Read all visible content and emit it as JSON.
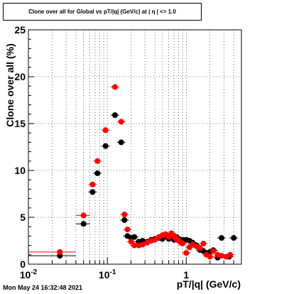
{
  "title": "Clone  over all for Global vs pT/|q| (GeV/c) at |  η | <= 1.0",
  "timestamp": "Mon May 24 16:32:48 2021",
  "colors": {
    "series_black": "#000000",
    "series_red": "#ff0000",
    "grid": "#000000"
  },
  "chart_data": {
    "type": "scatter",
    "title": "Clone  over all for Global vs pT/|q| (GeV/c) at |  η | <= 1.0",
    "xlabel": "pT/|q| (GeV/c)",
    "ylabel": "Clone  over all (%)",
    "x_scale": "log",
    "xlim": [
      0.01,
      5
    ],
    "ylim": [
      0,
      25
    ],
    "grid": true,
    "x_ticks": [
      {
        "value": 0.01,
        "label": "10",
        "sup": "-2"
      },
      {
        "value": 0.1,
        "label": "10",
        "sup": "-1"
      },
      {
        "value": 1,
        "label": "1",
        "sup": ""
      }
    ],
    "y_ticks": [
      0,
      5,
      10,
      15,
      20,
      25
    ],
    "series": [
      {
        "color": "#000000",
        "points": [
          {
            "x": 0.025,
            "y": 0.9,
            "xerr": [
              0.01,
              0.04
            ]
          },
          {
            "x": 0.05,
            "y": 4.3,
            "xerr": [
              0.04,
              0.06
            ]
          },
          {
            "x": 0.065,
            "y": 7.7
          },
          {
            "x": 0.075,
            "y": 9.7
          },
          {
            "x": 0.095,
            "y": 12.6
          },
          {
            "x": 0.125,
            "y": 15.9
          },
          {
            "x": 0.15,
            "y": 13.0
          },
          {
            "x": 0.165,
            "y": 4.7
          },
          {
            "x": 0.18,
            "y": 3.0
          },
          {
            "x": 0.2,
            "y": 2.8
          },
          {
            "x": 0.22,
            "y": 2.9
          },
          {
            "x": 0.25,
            "y": 2.4
          },
          {
            "x": 0.28,
            "y": 2.5
          },
          {
            "x": 0.32,
            "y": 2.4
          },
          {
            "x": 0.36,
            "y": 2.6
          },
          {
            "x": 0.4,
            "y": 2.7
          },
          {
            "x": 0.45,
            "y": 2.8
          },
          {
            "x": 0.5,
            "y": 2.7
          },
          {
            "x": 0.55,
            "y": 3.0
          },
          {
            "x": 0.6,
            "y": 2.7
          },
          {
            "x": 0.65,
            "y": 2.8
          },
          {
            "x": 0.7,
            "y": 2.6
          },
          {
            "x": 0.75,
            "y": 2.9
          },
          {
            "x": 0.8,
            "y": 2.7
          },
          {
            "x": 0.85,
            "y": 2.5
          },
          {
            "x": 0.9,
            "y": 2.6
          },
          {
            "x": 1.0,
            "y": 2.6
          },
          {
            "x": 1.1,
            "y": 2.5
          },
          {
            "x": 1.2,
            "y": 2.3
          },
          {
            "x": 1.35,
            "y": 2.0
          },
          {
            "x": 1.5,
            "y": 1.5
          },
          {
            "x": 1.65,
            "y": 1.4
          },
          {
            "x": 1.8,
            "y": 1.2
          },
          {
            "x": 2.0,
            "y": 1.3
          },
          {
            "x": 2.2,
            "y": 1.5
          },
          {
            "x": 2.5,
            "y": 0.7
          },
          {
            "x": 2.8,
            "y": 2.8
          },
          {
            "x": 3.5,
            "y": 0.8
          },
          {
            "x": 4.0,
            "y": 2.8
          }
        ]
      },
      {
        "color": "#ff0000",
        "points": [
          {
            "x": 0.025,
            "y": 1.3,
            "xerr": [
              0.01,
              0.04
            ]
          },
          {
            "x": 0.05,
            "y": 5.2,
            "xerr": [
              0.04,
              0.06
            ]
          },
          {
            "x": 0.065,
            "y": 8.5
          },
          {
            "x": 0.075,
            "y": 11.0
          },
          {
            "x": 0.095,
            "y": 14.3
          },
          {
            "x": 0.125,
            "y": 18.9
          },
          {
            "x": 0.15,
            "y": 15.2
          },
          {
            "x": 0.165,
            "y": 5.3
          },
          {
            "x": 0.18,
            "y": 3.7
          },
          {
            "x": 0.2,
            "y": 2.4
          },
          {
            "x": 0.22,
            "y": 2.0
          },
          {
            "x": 0.25,
            "y": 2.0
          },
          {
            "x": 0.28,
            "y": 2.1
          },
          {
            "x": 0.32,
            "y": 2.3
          },
          {
            "x": 0.36,
            "y": 2.5
          },
          {
            "x": 0.4,
            "y": 2.6
          },
          {
            "x": 0.45,
            "y": 2.9
          },
          {
            "x": 0.5,
            "y": 3.1
          },
          {
            "x": 0.55,
            "y": 3.2
          },
          {
            "x": 0.6,
            "y": 2.9
          },
          {
            "x": 0.65,
            "y": 3.3
          },
          {
            "x": 0.7,
            "y": 3.0
          },
          {
            "x": 0.75,
            "y": 2.7
          },
          {
            "x": 0.8,
            "y": 2.5
          },
          {
            "x": 0.85,
            "y": 2.3
          },
          {
            "x": 0.9,
            "y": 2.2
          },
          {
            "x": 1.0,
            "y": 1.2
          },
          {
            "x": 1.1,
            "y": 1.8
          },
          {
            "x": 1.2,
            "y": 2.1
          },
          {
            "x": 1.35,
            "y": 1.9
          },
          {
            "x": 1.5,
            "y": 1.7
          },
          {
            "x": 1.65,
            "y": 2.2
          },
          {
            "x": 1.8,
            "y": 1.0
          },
          {
            "x": 2.0,
            "y": 0.8
          },
          {
            "x": 2.2,
            "y": 1.4
          },
          {
            "x": 2.5,
            "y": 1.0
          },
          {
            "x": 2.8,
            "y": 0.9
          },
          {
            "x": 3.2,
            "y": 0.8
          },
          {
            "x": 3.6,
            "y": 1.0
          }
        ]
      }
    ]
  }
}
